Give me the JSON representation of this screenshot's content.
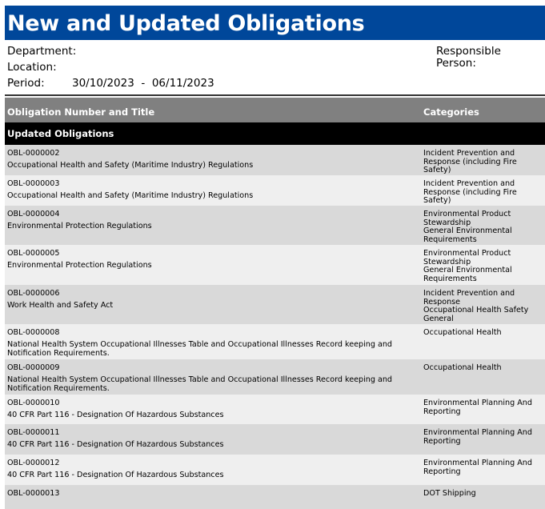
{
  "title": "New and Updated Obligations",
  "meta": {
    "department_label": "Department:",
    "location_label": "Location:",
    "period_label": "Period:",
    "period_value": "30/10/2023  -  06/11/2023",
    "responsible_label": "Responsible Person:"
  },
  "table": {
    "headers": [
      "Obligation Number and Title",
      "Categories"
    ],
    "group": "Updated Obligations",
    "rows": [
      {
        "number": "OBL-0000002",
        "title": "Occupational Health and Safety (Maritime Industry) Regulations",
        "categories": "Incident Prevention and Response (including Fire Safety)"
      },
      {
        "number": "OBL-0000003",
        "title": "Occupational Health and Safety (Maritime Industry) Regulations",
        "categories": "Incident Prevention and Response (including Fire Safety)"
      },
      {
        "number": "OBL-0000004",
        "title": "Environmental Protection Regulations",
        "categories": "Environmental Product Stewardship\nGeneral Environmental Requirements"
      },
      {
        "number": "OBL-0000005",
        "title": "Environmental Protection Regulations",
        "categories": "Environmental Product Stewardship\nGeneral Environmental Requirements"
      },
      {
        "number": "OBL-0000006",
        "title": "Work Health and Safety Act",
        "categories": "Incident Prevention and Response\nOccupational Health Safety General"
      },
      {
        "number": "OBL-0000008",
        "title": "National Health System Occupational Illnesses Table and Occupational Illnesses Record keeping and Notification Requirements.",
        "categories": "Occupational Health"
      },
      {
        "number": "OBL-0000009",
        "title": "National Health System Occupational Illnesses Table and Occupational Illnesses Record keeping and Notification Requirements.",
        "categories": "Occupational Health"
      },
      {
        "number": "OBL-0000010",
        "title": "40 CFR Part 116 - Designation Of Hazardous Substances",
        "categories": "Environmental Planning And Reporting"
      },
      {
        "number": "OBL-0000011",
        "title": "40 CFR Part 116 - Designation Of Hazardous Substances",
        "categories": "Environmental Planning And Reporting"
      },
      {
        "number": "OBL-0000012",
        "title": "40 CFR Part 116 - Designation Of Hazardous Substances",
        "categories": "Environmental Planning And Reporting"
      },
      {
        "number": "OBL-0000013",
        "title": "",
        "categories": "DOT Shipping"
      }
    ]
  }
}
